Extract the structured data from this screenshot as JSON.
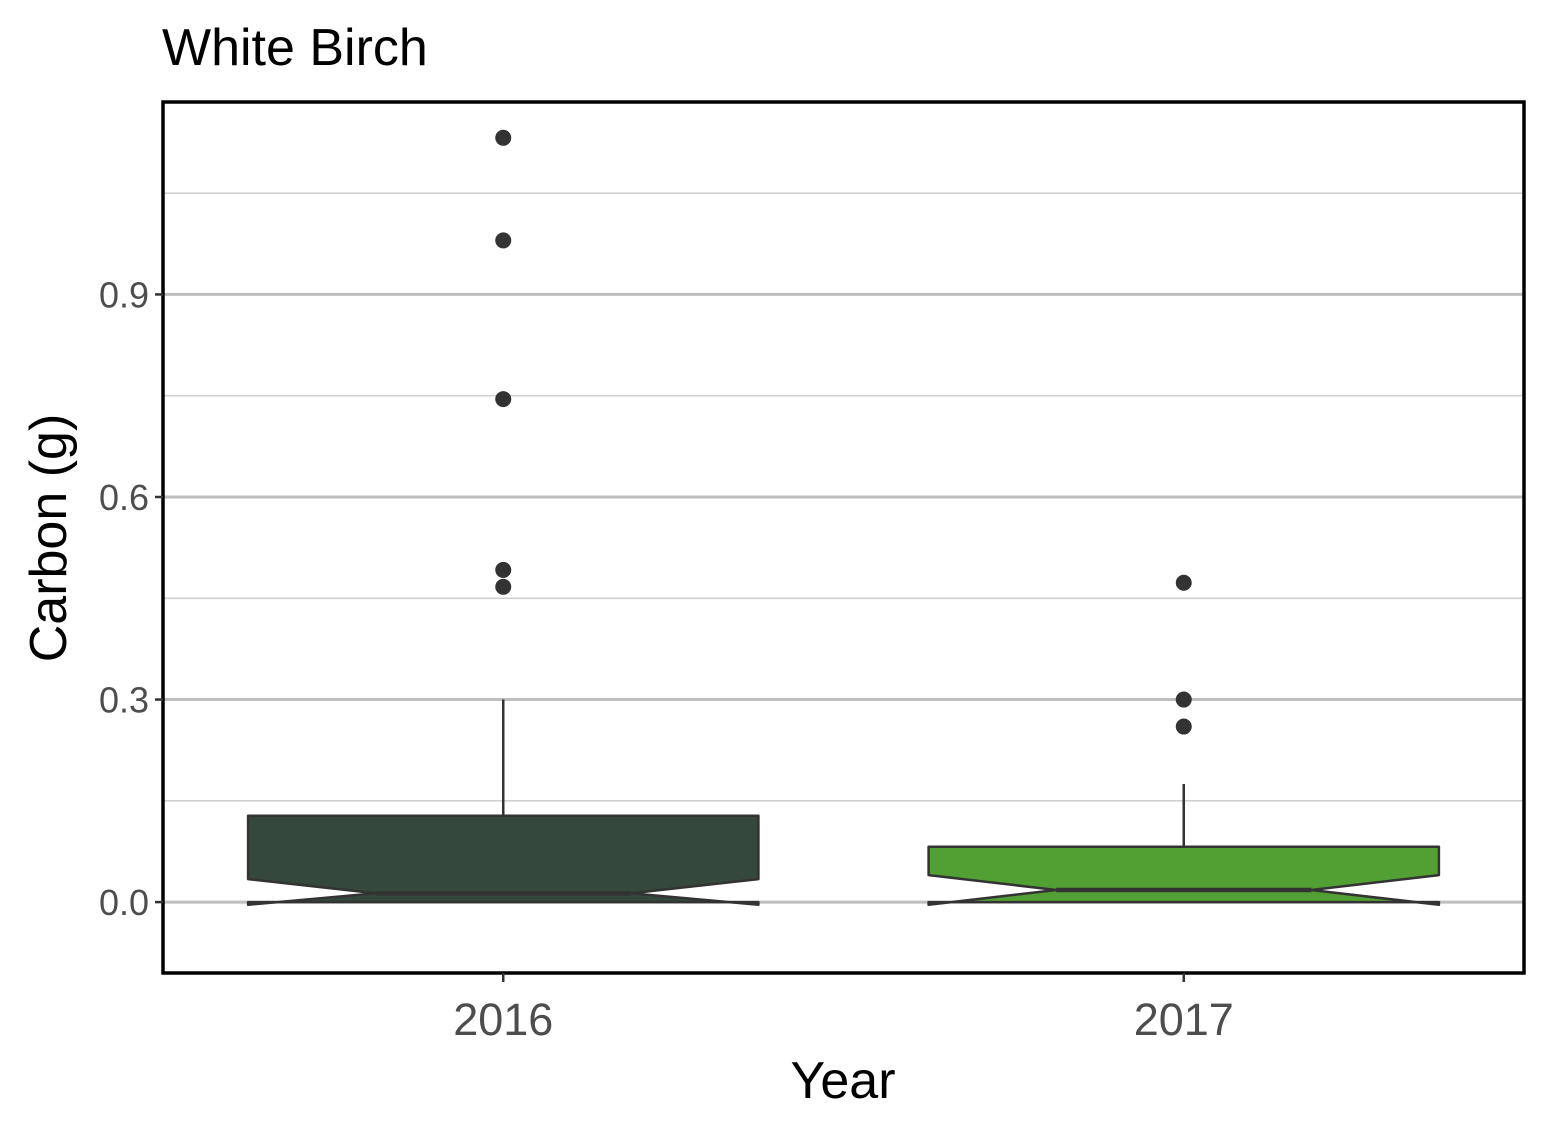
{
  "chart_data": {
    "type": "boxplot",
    "title": "White Birch",
    "xlabel": "Year",
    "ylabel": "Carbon (g)",
    "categories": [
      "2016",
      "2017"
    ],
    "ylim": [
      -0.105,
      1.185
    ],
    "yticks": [
      0.0,
      0.3,
      0.6,
      0.9
    ],
    "ytick_labels": [
      "0.0",
      "0.3",
      "0.6",
      "0.9"
    ],
    "y_minor_gridlines": [
      0.15,
      0.45,
      0.75,
      1.05
    ],
    "grid": "horizontal",
    "notched": true,
    "boxes": [
      {
        "category": "2016",
        "color": "#35483c",
        "whisker_low": 0.0,
        "q1": 0.0,
        "median": 0.013,
        "q3": 0.128,
        "whisker_high": 0.3,
        "notch_low": -0.004,
        "notch_high": 0.034,
        "outliers": [
          0.467,
          0.492,
          0.745,
          0.98,
          1.132
        ]
      },
      {
        "category": "2017",
        "color": "#52a034",
        "whisker_low": 0.0,
        "q1": 0.0,
        "median": 0.018,
        "q3": 0.082,
        "whisker_high": 0.175,
        "notch_low": -0.004,
        "notch_high": 0.04,
        "outliers": [
          0.26,
          0.3,
          0.473
        ]
      }
    ],
    "colors": {
      "outline": "#333333",
      "outlier": "#333333",
      "grid_major": "#bebebe",
      "grid_minor": "#d0d0d0",
      "panel_border": "#000000",
      "tick_text": "#4d4d4d",
      "title_text": "#000000"
    }
  }
}
